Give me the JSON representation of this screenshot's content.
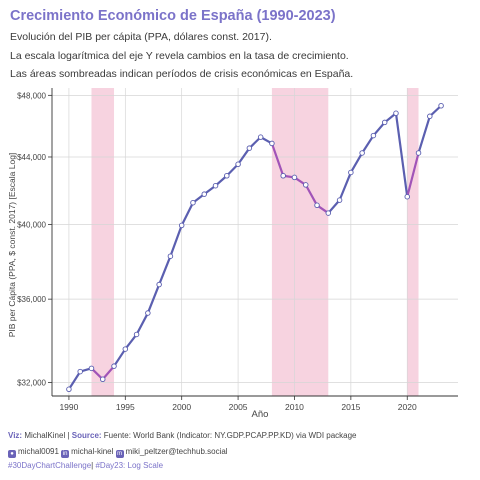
{
  "header": {
    "title": "Crecimiento Económico de España (1990-2023)",
    "subtitle1": "Evolución del PIB per cápita (PPA, dólares const. 2017).",
    "subtitle2": "La escala logarítmica del eje Y revela cambios en la tasa de crecimiento.",
    "subtitle3": "Las áreas sombreadas indican períodos de crisis económicas en España."
  },
  "chart_data": {
    "type": "line",
    "title": "Crecimiento Económico de España (1990-2023)",
    "xlabel": "Año",
    "ylabel": "PIB per Cápita (PPA, $ const. 2017) [Escala Log]",
    "yscale": "log",
    "xlim": [
      1988.5,
      2024.5
    ],
    "ylim": [
      31400,
      48500
    ],
    "xticks": [
      1990,
      1995,
      2000,
      2005,
      2010,
      2015,
      2020
    ],
    "yticks": [
      32000,
      36000,
      40000,
      44000,
      48000
    ],
    "ytick_labels": [
      "$32,000",
      "$36,000",
      "$40,000",
      "$44,000",
      "$48,000"
    ],
    "grid": true,
    "crisis_periods": [
      [
        1992,
        1994
      ],
      [
        2008,
        2013
      ],
      [
        2020,
        2021
      ]
    ],
    "line_color": "#5b5fb0",
    "crisis_line_color": "#a154b8",
    "shade_color": "#f2b6cc",
    "x": [
      1990,
      1991,
      1992,
      1993,
      1994,
      1995,
      1996,
      1997,
      1998,
      1999,
      2000,
      2001,
      2002,
      2003,
      2004,
      2005,
      2006,
      2007,
      2008,
      2009,
      2010,
      2011,
      2012,
      2013,
      2014,
      2015,
      2016,
      2017,
      2018,
      2019,
      2020,
      2021,
      2022,
      2023
    ],
    "values": [
      31700,
      32500,
      32650,
      32150,
      32750,
      33550,
      34250,
      35300,
      36750,
      38250,
      39950,
      41250,
      41750,
      42250,
      42850,
      43550,
      44550,
      45250,
      44850,
      42850,
      42750,
      42300,
      41100,
      40650,
      41400,
      43050,
      44250,
      45350,
      46200,
      46800,
      41600,
      44250,
      46600,
      47300
    ]
  },
  "footer": {
    "viz_label": "Viz:",
    "viz_author": "MichalKinel",
    "separator": "|",
    "source_label": "Source:",
    "source_text": "Fuente: World Bank (Indicator: NY.GDP.PCAP.PP.KD) via WDI package",
    "github": "michal0091",
    "linkedin": "michal-kinel",
    "mastodon": "miki_peltzer@techhub.social",
    "hashtag1": "#30DayChartChallenge",
    "hashtag_sep": "|",
    "hashtag2": "#Day23: Log Scale",
    "github_icon": "github-icon",
    "linkedin_icon": "linkedin-icon",
    "mastodon_icon": "mastodon-icon"
  }
}
